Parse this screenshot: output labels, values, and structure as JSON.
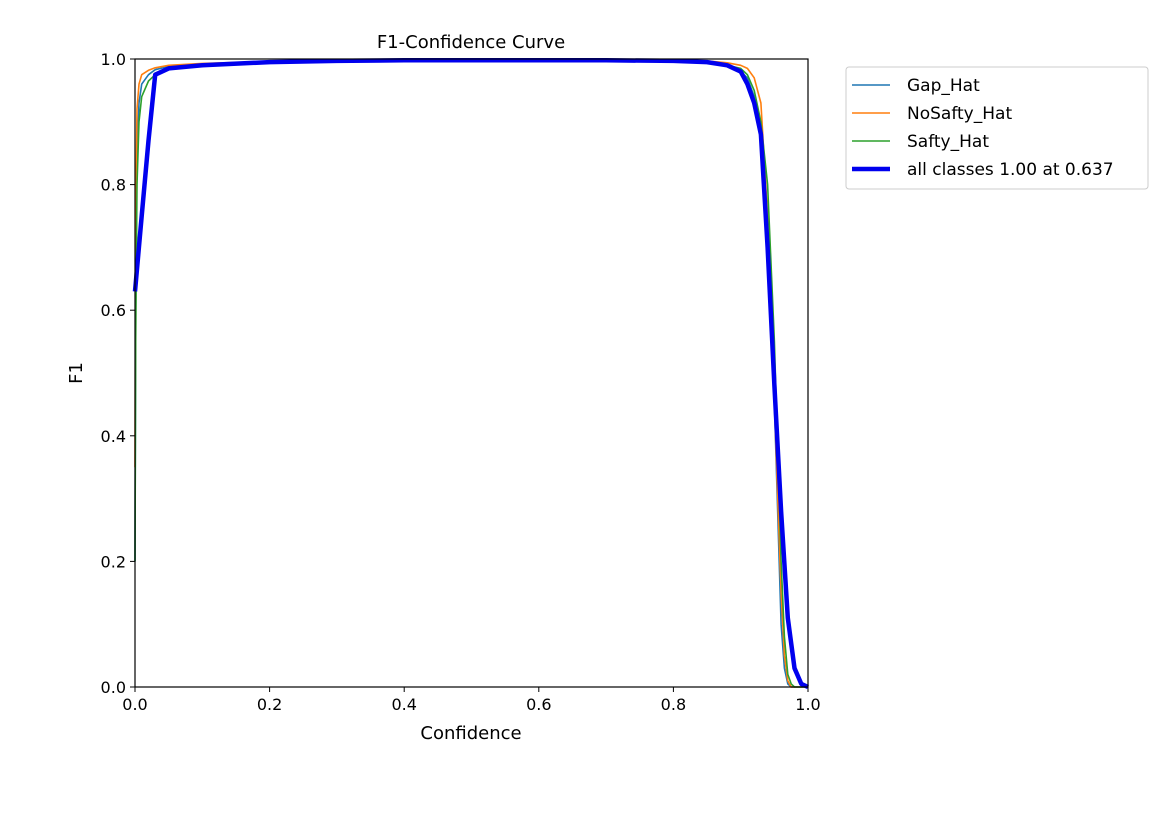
{
  "chart_data": {
    "type": "line",
    "title": "F1-Confidence Curve",
    "xlabel": "Confidence",
    "ylabel": "F1",
    "xlim": [
      0,
      1
    ],
    "ylim": [
      0,
      1
    ],
    "xticks": [
      "0.0",
      "0.2",
      "0.4",
      "0.6",
      "0.8",
      "1.0"
    ],
    "yticks": [
      "0.0",
      "0.2",
      "0.4",
      "0.6",
      "0.8",
      "1.0"
    ],
    "grid": false,
    "legend_position": "outside-top-right",
    "series": [
      {
        "name": "Gap_Hat",
        "color": "#1f77b4",
        "x": [
          0.0,
          0.001,
          0.003,
          0.006,
          0.01,
          0.02,
          0.03,
          0.05,
          0.1,
          0.2,
          0.3,
          0.4,
          0.5,
          0.6,
          0.7,
          0.8,
          0.85,
          0.88,
          0.9,
          0.91,
          0.92,
          0.93,
          0.94,
          0.95,
          0.96,
          0.965,
          0.97,
          0.975,
          0.98,
          1.0
        ],
        "y": [
          0.2,
          0.6,
          0.85,
          0.93,
          0.96,
          0.975,
          0.983,
          0.988,
          0.992,
          0.995,
          0.997,
          0.998,
          0.998,
          0.998,
          0.998,
          0.997,
          0.995,
          0.99,
          0.98,
          0.97,
          0.94,
          0.88,
          0.7,
          0.45,
          0.1,
          0.03,
          0.005,
          0.0,
          0.0,
          0.0
        ]
      },
      {
        "name": "NoSafty_Hat",
        "color": "#ff7f0e",
        "x": [
          0.0,
          0.001,
          0.003,
          0.006,
          0.01,
          0.02,
          0.03,
          0.05,
          0.1,
          0.2,
          0.3,
          0.4,
          0.5,
          0.6,
          0.7,
          0.8,
          0.85,
          0.88,
          0.9,
          0.91,
          0.92,
          0.93,
          0.94,
          0.95,
          0.96,
          0.965,
          0.97,
          0.975,
          0.98,
          1.0
        ],
        "y": [
          0.35,
          0.75,
          0.92,
          0.96,
          0.975,
          0.982,
          0.986,
          0.99,
          0.993,
          0.996,
          0.998,
          0.999,
          0.999,
          0.999,
          0.999,
          0.998,
          0.997,
          0.994,
          0.99,
          0.985,
          0.97,
          0.93,
          0.75,
          0.45,
          0.15,
          0.05,
          0.01,
          0.0,
          0.0,
          0.0
        ]
      },
      {
        "name": "Safty_Hat",
        "color": "#2ca02c",
        "x": [
          0.0,
          0.001,
          0.003,
          0.006,
          0.01,
          0.02,
          0.03,
          0.05,
          0.1,
          0.2,
          0.3,
          0.4,
          0.5,
          0.6,
          0.7,
          0.8,
          0.85,
          0.88,
          0.9,
          0.91,
          0.92,
          0.93,
          0.94,
          0.95,
          0.96,
          0.965,
          0.97,
          0.975,
          0.98,
          1.0
        ],
        "y": [
          0.2,
          0.55,
          0.8,
          0.9,
          0.94,
          0.965,
          0.975,
          0.985,
          0.99,
          0.994,
          0.996,
          0.997,
          0.998,
          0.998,
          0.998,
          0.997,
          0.995,
          0.99,
          0.985,
          0.975,
          0.95,
          0.9,
          0.8,
          0.55,
          0.2,
          0.08,
          0.02,
          0.005,
          0.0,
          0.0
        ]
      },
      {
        "name": "all classes 1.00 at 0.637",
        "color": "#0000ee",
        "x": [
          0.0,
          0.01,
          0.02,
          0.03,
          0.05,
          0.1,
          0.2,
          0.3,
          0.4,
          0.5,
          0.6,
          0.637,
          0.7,
          0.8,
          0.85,
          0.88,
          0.9,
          0.91,
          0.92,
          0.93,
          0.94,
          0.95,
          0.96,
          0.97,
          0.98,
          0.99,
          1.0
        ],
        "y": [
          0.63,
          0.75,
          0.87,
          0.975,
          0.985,
          0.99,
          0.995,
          0.997,
          0.998,
          0.998,
          0.998,
          0.998,
          0.998,
          0.997,
          0.995,
          0.99,
          0.98,
          0.96,
          0.93,
          0.88,
          0.7,
          0.48,
          0.28,
          0.11,
          0.03,
          0.005,
          0.0
        ]
      }
    ]
  }
}
